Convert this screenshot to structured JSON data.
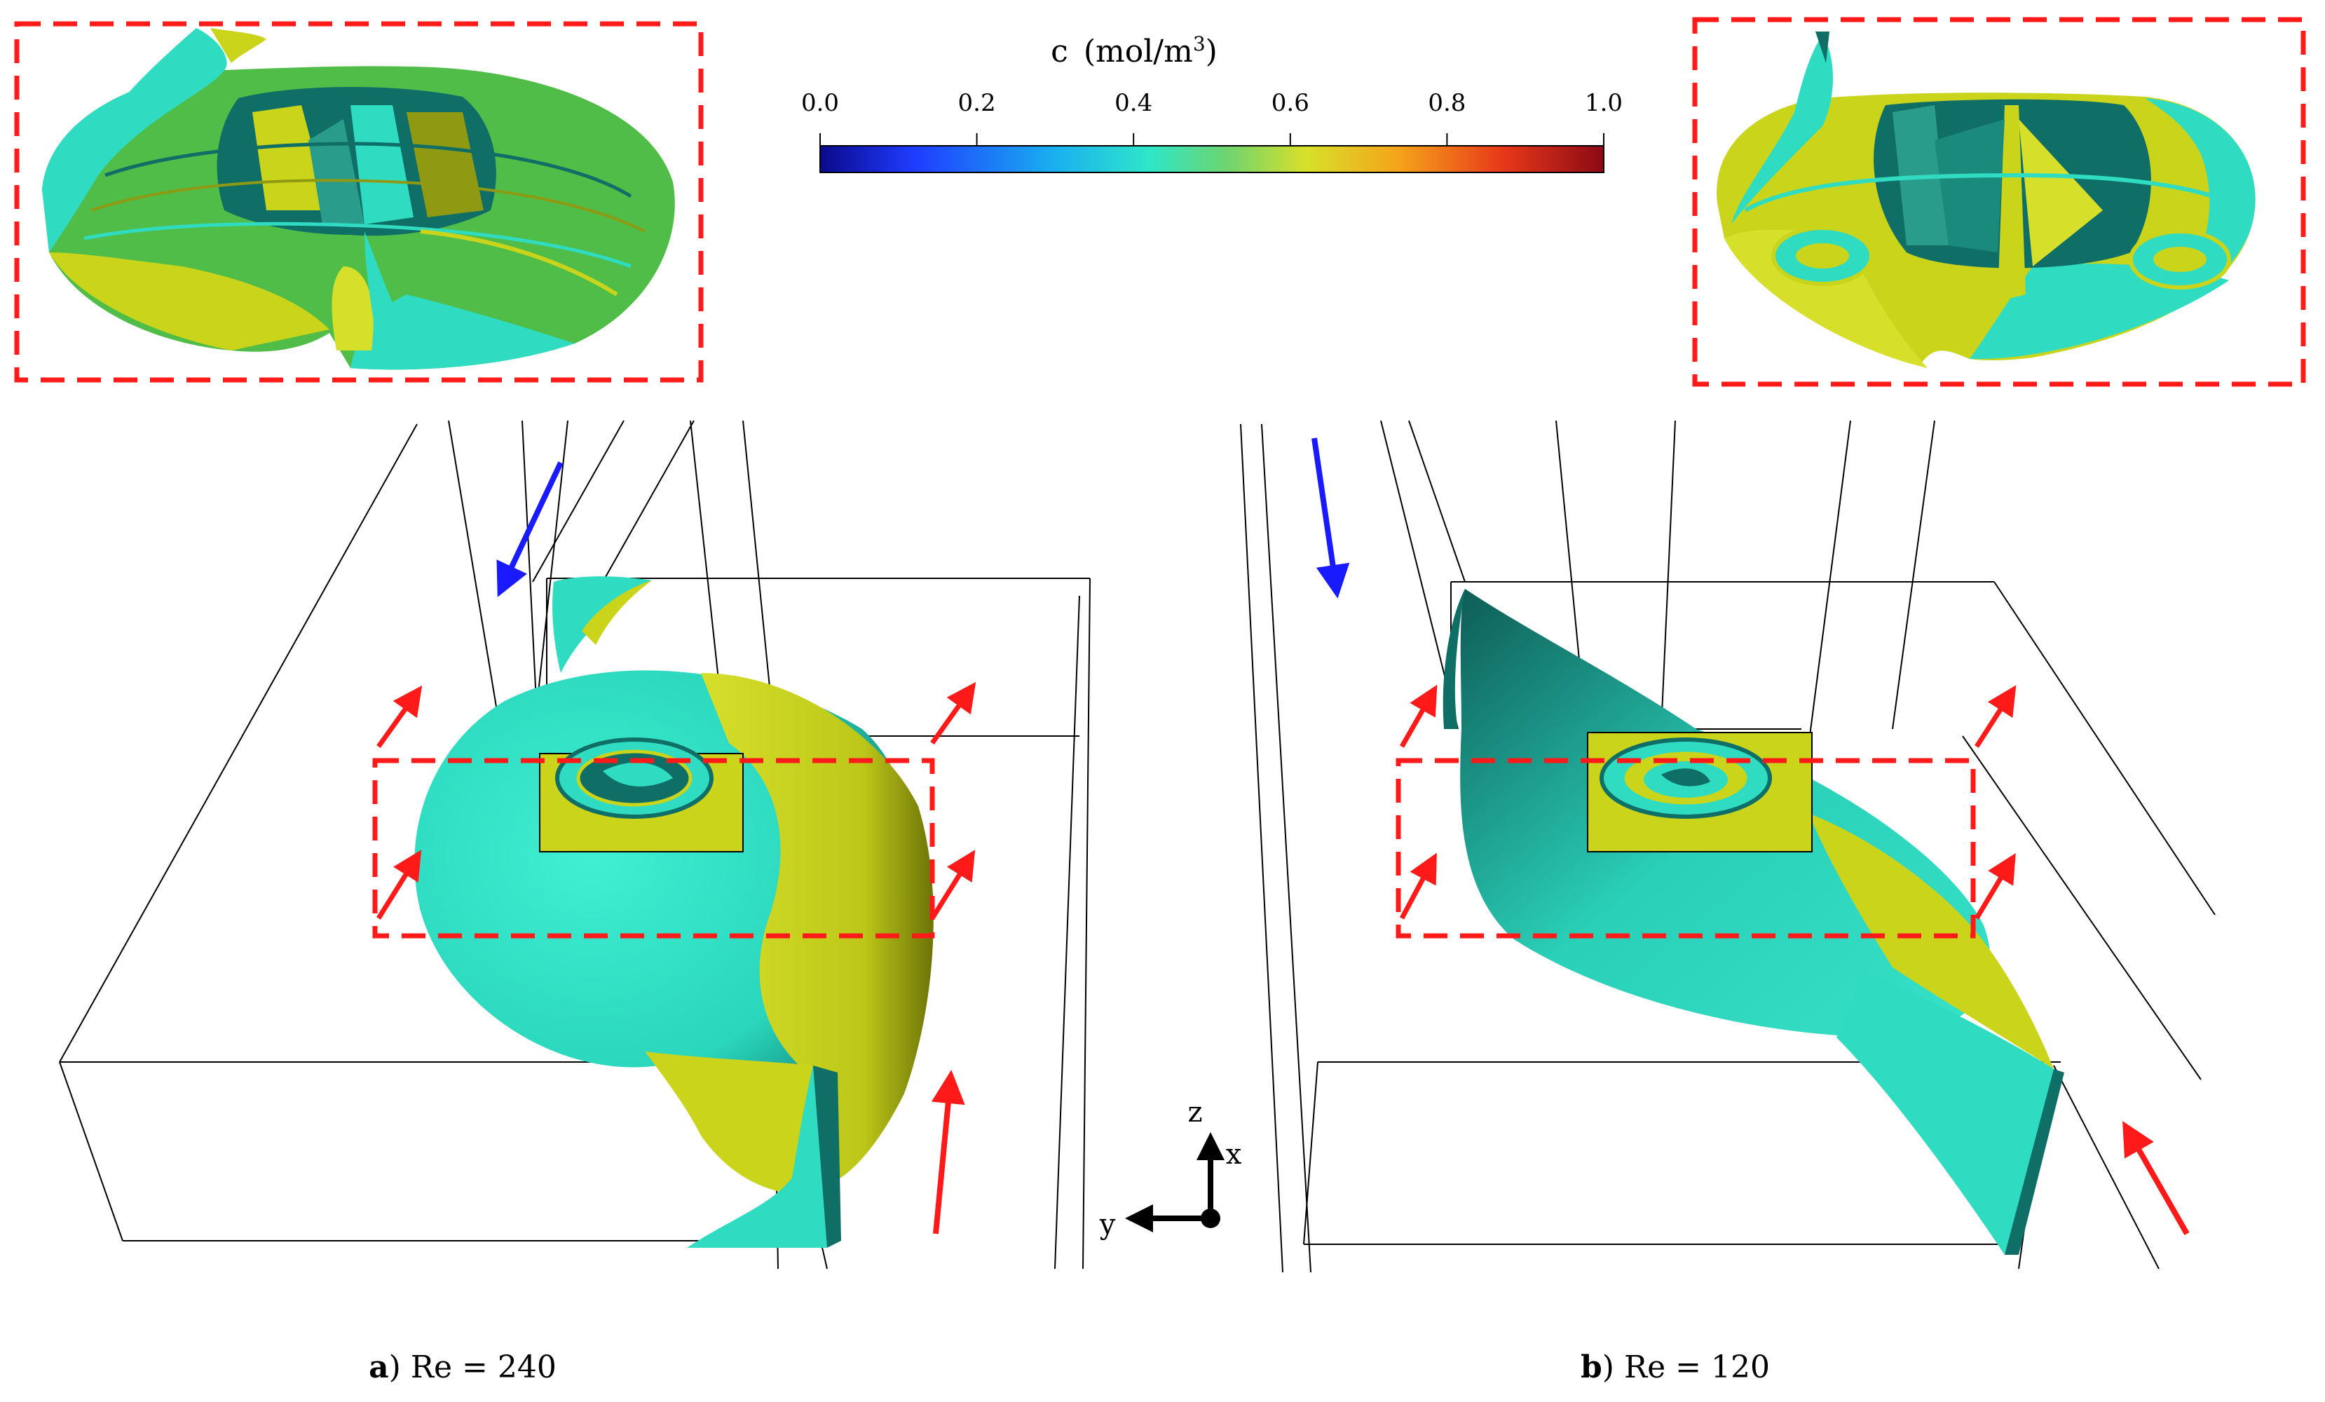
{
  "colorbar": {
    "variable": "c",
    "unit_open": "(mol/m",
    "unit_sup": "3",
    "unit_close": ")",
    "ticks": [
      "0.0",
      "0.2",
      "0.4",
      "0.6",
      "0.8",
      "1.0"
    ],
    "range": [
      0.0,
      1.0
    ],
    "colormap": [
      "#0a0a8c",
      "#1f3cff",
      "#1ab0f0",
      "#2ee6c8",
      "#6fd46e",
      "#d8e02a",
      "#f5a21a",
      "#e8391a",
      "#8c0a14"
    ]
  },
  "axes_triad": {
    "z": "z",
    "x": "x",
    "y": "y"
  },
  "panels": [
    {
      "letter": "a",
      "rest": ") Re = 240"
    },
    {
      "letter": "b",
      "rest": ") Re = 120"
    }
  ],
  "colors": {
    "cyan_surface": "#2ee0c4",
    "dark_teal": "#0f6e66",
    "yellow_surface": "#c9d41a",
    "olive": "#8f9a12",
    "green_surface": "#56c24a",
    "inlet_arrow": "#ff1a1a",
    "outlet_arrow": "#1a1aff",
    "highlight_box": "#ff1a1a"
  }
}
